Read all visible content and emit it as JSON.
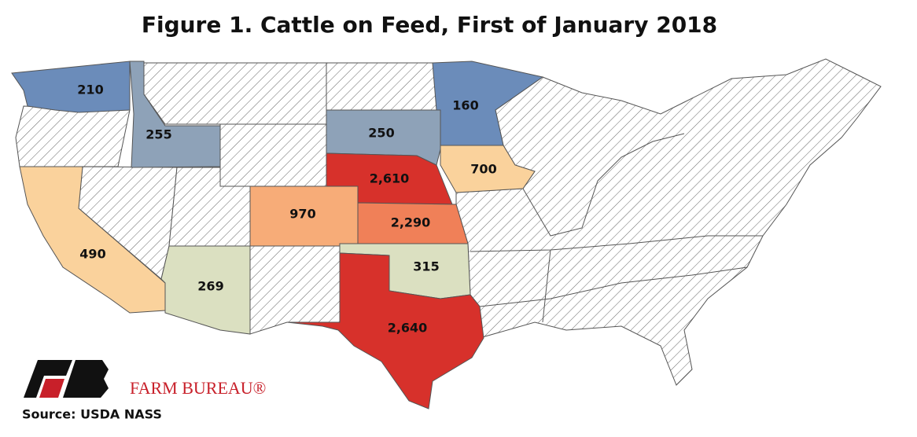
{
  "chart_data": {
    "type": "choropleth",
    "title": "Figure 1. Cattle on Feed, First of January 2018",
    "values": [
      210,
      255,
      160,
      250,
      700,
      2610,
      970,
      2290,
      490,
      269,
      315,
      2640
    ],
    "value_labels": [
      "210",
      "255",
      "160",
      "250",
      "700",
      "2,610",
      "970",
      "2,290",
      "490",
      "269",
      "315",
      "2,640"
    ],
    "colors": [
      "#6b8cba",
      "#8ea2b8",
      "#6b8cba",
      "#8ea2b8",
      "#fad29c",
      "#d7312b",
      "#f7ac78",
      "#f08058",
      "#fad29c",
      "#dbe0c1",
      "#dbe0c1",
      "#d7312b"
    ],
    "source": "Source: USDA NASS",
    "logo_text": "FARM BUREAU®"
  }
}
